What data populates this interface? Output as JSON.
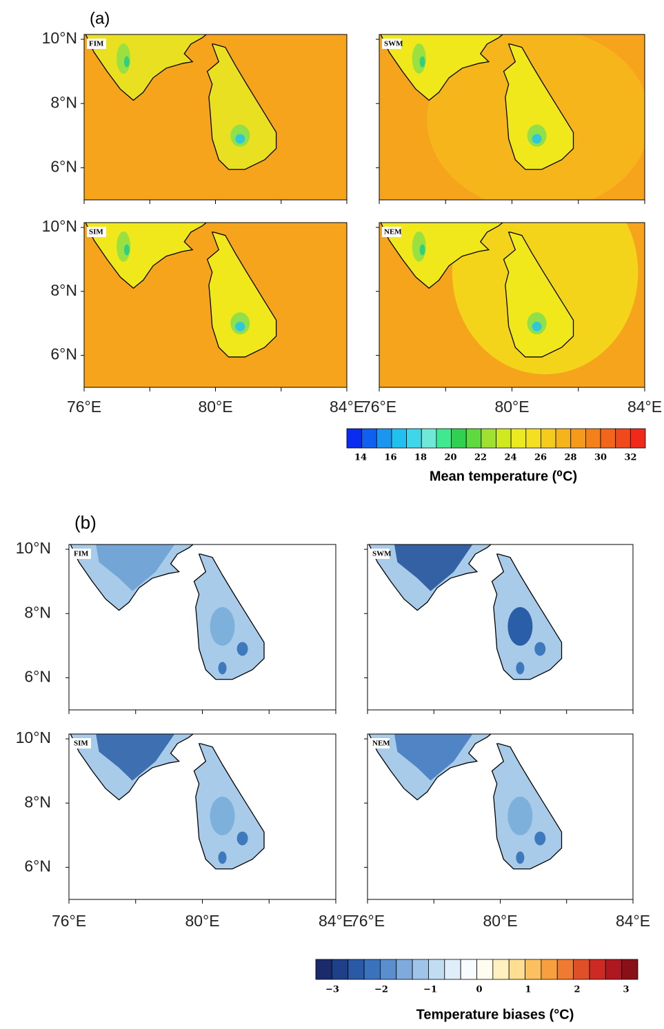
{
  "panels": [
    {
      "label": "(a)",
      "maps": [
        "FIM",
        "SWM",
        "SIM",
        "NEM"
      ],
      "colorbar": {
        "ticks": [
          "14",
          "16",
          "18",
          "20",
          "22",
          "24",
          "26",
          "28",
          "30",
          "32"
        ],
        "title": "Mean temperature (⁰C)"
      }
    },
    {
      "label": "(b)",
      "maps": [
        "FIM",
        "SWM",
        "SIM",
        "NEM"
      ],
      "colorbar": {
        "ticks": [
          "−3",
          "−2",
          "−1",
          "0",
          "1",
          "2",
          "3"
        ],
        "title": "Temperature biases (°C)"
      }
    }
  ],
  "lat_labels": [
    "10°N",
    "8°N",
    "6°N"
  ],
  "lon_labels": [
    "76°E",
    "80°E",
    "84°E"
  ]
}
